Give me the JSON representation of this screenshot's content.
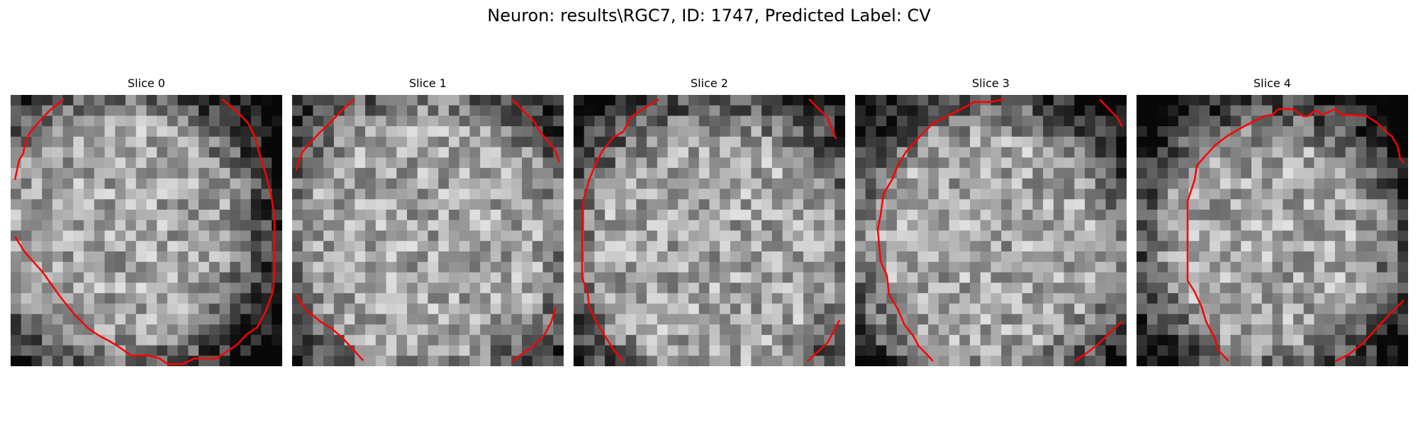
{
  "figure": {
    "title": "Neuron: results\\RGC7, ID: 1747, Predicted Label: CV"
  },
  "panels": [
    {
      "title": "Slice 0"
    },
    {
      "title": "Slice 1"
    },
    {
      "title": "Slice 2"
    },
    {
      "title": "Slice 3"
    },
    {
      "title": "Slice 4"
    }
  ],
  "style": {
    "contour_color": "#ff0000",
    "pixel_palette": "grayscale"
  }
}
